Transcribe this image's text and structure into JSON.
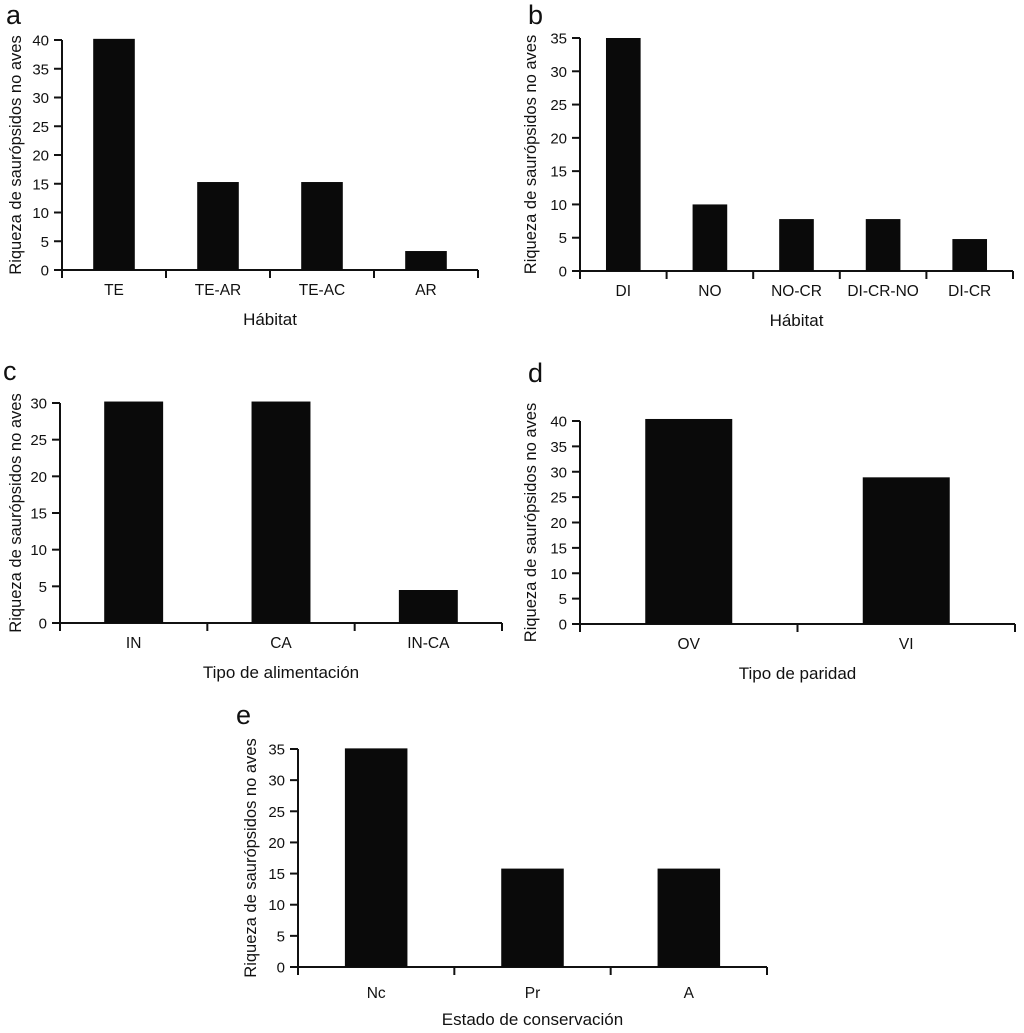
{
  "figure": {
    "description": "Five-panel bar chart figure",
    "background_color": "#ffffff",
    "bar_color": "#0a0a0a",
    "axis_color": "#111111",
    "text_color": "#111111"
  },
  "chart_data": [
    {
      "type": "bar",
      "panel_label": "a",
      "categories": [
        "TE",
        "TE-AR",
        "TE-AC",
        "AR"
      ],
      "values": [
        40.2,
        15.3,
        15.3,
        3.3
      ],
      "title": "",
      "xlabel": "Hábitat",
      "ylabel": "Riqueza de saurópsidos no aves",
      "ylim": [
        0,
        40
      ],
      "ytick_step": 5,
      "grid": false,
      "legend": "none"
    },
    {
      "type": "bar",
      "panel_label": "b",
      "categories": [
        "DI",
        "NO",
        "NO-CR",
        "DI-CR-NO",
        "DI-CR"
      ],
      "values": [
        35,
        10,
        7.8,
        7.8,
        4.8
      ],
      "title": "",
      "xlabel": "Hábitat",
      "ylabel": "Riqueza de saurópsidos no aves",
      "ylim": [
        0,
        35
      ],
      "ytick_step": 5,
      "grid": false,
      "legend": "none"
    },
    {
      "type": "bar",
      "panel_label": "c",
      "categories": [
        "IN",
        "CA",
        "IN-CA"
      ],
      "values": [
        30.2,
        30.2,
        4.5
      ],
      "title": "",
      "xlabel": "Tipo de alimentación",
      "ylabel": "Riqueza de saurópsidos no aves",
      "ylim": [
        0,
        30
      ],
      "ytick_step": 5,
      "grid": false,
      "legend": "none"
    },
    {
      "type": "bar",
      "panel_label": "d",
      "categories": [
        "OV",
        "VI"
      ],
      "values": [
        40.4,
        28.9
      ],
      "title": "",
      "xlabel": "Tipo de paridad",
      "ylabel": "Riqueza de saurópsidos no aves",
      "ylim": [
        0,
        40
      ],
      "ytick_step": 5,
      "grid": false,
      "legend": "none"
    },
    {
      "type": "bar",
      "panel_label": "e",
      "categories": [
        "Nc",
        "Pr",
        "A"
      ],
      "values": [
        35.1,
        15.8,
        15.8
      ],
      "title": "",
      "xlabel": "Estado de conservación",
      "ylabel": "Riqueza de saurópsidos no aves",
      "ylim": [
        0,
        35
      ],
      "ytick_step": 5,
      "grid": false,
      "legend": "none"
    }
  ]
}
